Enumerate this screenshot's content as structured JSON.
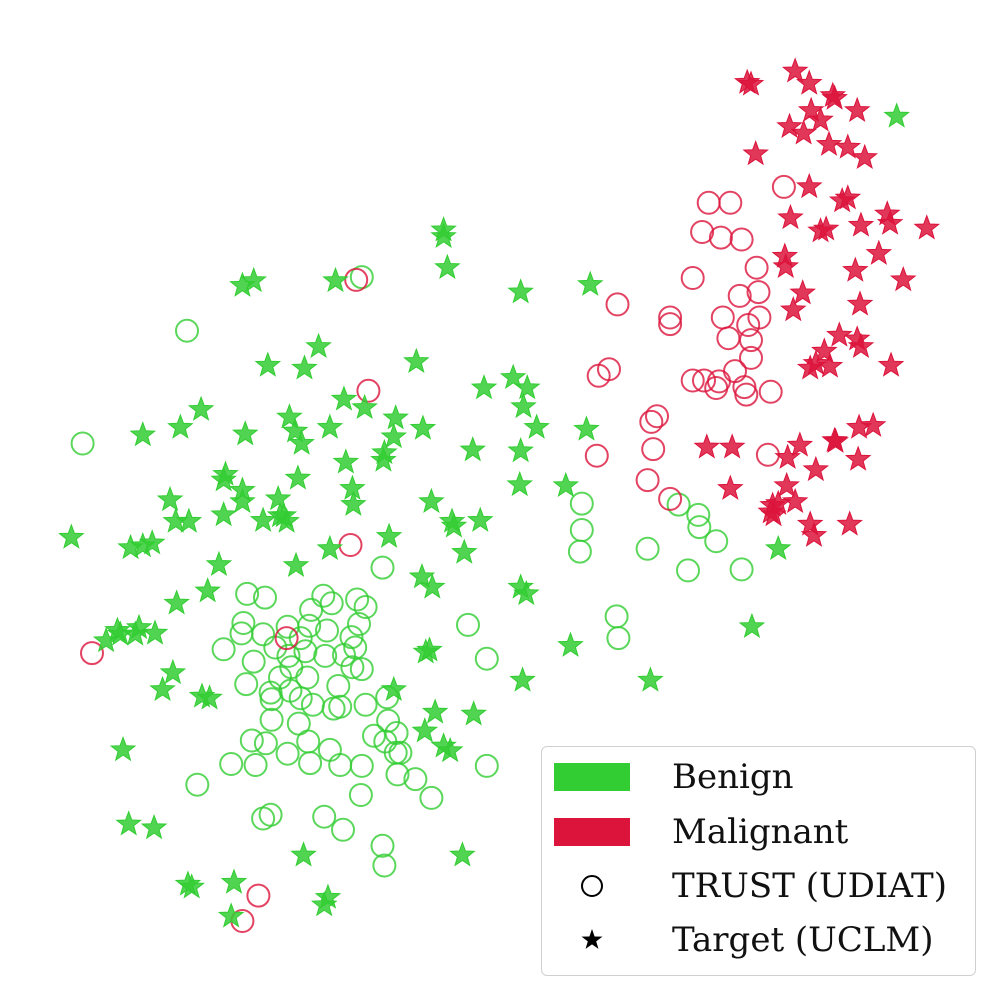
{
  "chart_data": {
    "type": "scatter",
    "title": "",
    "xlabel": "",
    "ylabel": "",
    "axes_visible": false,
    "grid": false,
    "xlim": [
      0,
      100
    ],
    "ylim": [
      0,
      100
    ],
    "legend_position": "bottom-right",
    "colors": {
      "benign": "#32cd32",
      "malignant": "#dc143c",
      "marker_key": "#000000"
    },
    "legend": [
      {
        "kind": "patch",
        "color_key": "benign",
        "label": "Benign"
      },
      {
        "kind": "patch",
        "color_key": "malignant",
        "label": "Malignant"
      },
      {
        "kind": "marker",
        "marker": "circle-open",
        "label": "TRUST (UDIAT)"
      },
      {
        "kind": "marker",
        "marker": "star",
        "label": "Target (UCLM)"
      }
    ],
    "series": [
      {
        "name": "Benign",
        "group": "TRUST (UDIAT)",
        "class": "benign",
        "marker": "circle-open",
        "points": [
          [
            35.3,
            73.5
          ],
          [
            16.7,
            67.8
          ],
          [
            5.6,
            55.8
          ],
          [
            37.5,
            42.6
          ],
          [
            58.7,
            49.4
          ],
          [
            58.7,
            46.6
          ],
          [
            58.5,
            44.3
          ],
          [
            65.7,
            44.6
          ],
          [
            69.0,
            49.3
          ],
          [
            71.1,
            48.2
          ],
          [
            71.2,
            46.9
          ],
          [
            73.0,
            45.4
          ],
          [
            70.0,
            42.3
          ],
          [
            75.7,
            42.4
          ],
          [
            62.4,
            37.4
          ],
          [
            62.6,
            35.1
          ],
          [
            46.6,
            36.5
          ],
          [
            48.6,
            32.9
          ],
          [
            48.6,
            21.5
          ],
          [
            39.1,
            20.6
          ],
          [
            41.0,
            20.1
          ],
          [
            42.7,
            18.1
          ],
          [
            37.5,
            13.0
          ],
          [
            37.7,
            10.9
          ],
          [
            17.8,
            19.5
          ],
          [
            24.8,
            15.9
          ],
          [
            25.6,
            16.3
          ],
          [
            31.3,
            16.1
          ],
          [
            33.3,
            14.7
          ],
          [
            39.4,
            22.9
          ],
          [
            35.2,
            18.4
          ],
          [
            35.3,
            21.5
          ],
          [
            29.8,
            21.8
          ],
          [
            27.4,
            22.8
          ],
          [
            25.1,
            23.9
          ],
          [
            23.6,
            24.2
          ],
          [
            21.4,
            21.7
          ],
          [
            24.0,
            21.6
          ],
          [
            25.7,
            26.4
          ],
          [
            25.7,
            28.6
          ],
          [
            23.0,
            30.2
          ],
          [
            20.6,
            33.9
          ],
          [
            22.7,
            36.7
          ],
          [
            25.0,
            39.4
          ],
          [
            23.1,
            39.8
          ],
          [
            24.8,
            35.5
          ],
          [
            27.4,
            36.3
          ],
          [
            26.1,
            34.1
          ],
          [
            23.8,
            32.6
          ],
          [
            22.5,
            35.6
          ],
          [
            27.5,
            33.2
          ],
          [
            29.3,
            33.7
          ],
          [
            29.7,
            36.4
          ],
          [
            31.6,
            35.9
          ],
          [
            31.2,
            39.6
          ],
          [
            29.9,
            38.1
          ],
          [
            28.8,
            35.1
          ],
          [
            27.8,
            32.0
          ],
          [
            26.6,
            30.9
          ],
          [
            25.6,
            29.3
          ],
          [
            27.7,
            29.5
          ],
          [
            29.5,
            30.9
          ],
          [
            31.4,
            33.2
          ],
          [
            33.4,
            33.3
          ],
          [
            34.2,
            35.2
          ],
          [
            35.0,
            36.6
          ],
          [
            35.7,
            38.4
          ],
          [
            34.8,
            39.2
          ],
          [
            32.1,
            38.8
          ],
          [
            34.3,
            32.0
          ],
          [
            34.6,
            34.1
          ],
          [
            35.3,
            31.8
          ],
          [
            32.8,
            30.0
          ],
          [
            30.1,
            28.0
          ],
          [
            28.8,
            28.7
          ],
          [
            28.6,
            26.0
          ],
          [
            32.3,
            27.6
          ],
          [
            35.7,
            28.0
          ],
          [
            33.0,
            27.8
          ],
          [
            29.6,
            24.1
          ],
          [
            31.9,
            23.2
          ],
          [
            33.0,
            21.6
          ],
          [
            36.6,
            24.7
          ],
          [
            38.1,
            26.3
          ],
          [
            38.0,
            28.8
          ],
          [
            39.0,
            25.0
          ],
          [
            37.8,
            24.1
          ],
          [
            38.9,
            22.9
          ]
        ]
      },
      {
        "name": "Malignant",
        "group": "TRUST (UDIAT)",
        "class": "malignant",
        "marker": "circle-open",
        "points": [
          [
            34.7,
            73.2
          ],
          [
            36.0,
            61.4
          ],
          [
            34.1,
            45.0
          ],
          [
            27.3,
            35.1
          ],
          [
            6.6,
            33.5
          ],
          [
            24.3,
            7.7
          ],
          [
            22.6,
            5.0
          ],
          [
            62.5,
            70.6
          ],
          [
            60.5,
            63.0
          ],
          [
            61.6,
            63.7
          ],
          [
            60.3,
            54.5
          ],
          [
            65.7,
            51.9
          ],
          [
            68.1,
            49.9
          ],
          [
            66.3,
            55.2
          ],
          [
            66.1,
            58.1
          ],
          [
            66.7,
            58.7
          ],
          [
            68.1,
            69.2
          ],
          [
            68.1,
            68.5
          ],
          [
            70.5,
            73.4
          ],
          [
            71.5,
            78.3
          ],
          [
            72.2,
            81.4
          ],
          [
            74.5,
            81.4
          ],
          [
            73.5,
            77.7
          ],
          [
            75.7,
            77.5
          ],
          [
            77.3,
            74.5
          ],
          [
            77.5,
            71.9
          ],
          [
            75.5,
            71.5
          ],
          [
            73.7,
            69.2
          ],
          [
            74.3,
            67.0
          ],
          [
            76.4,
            68.4
          ],
          [
            77.6,
            69.2
          ],
          [
            76.7,
            66.8
          ],
          [
            76.7,
            64.9
          ],
          [
            75.0,
            63.5
          ],
          [
            73.3,
            62.4
          ],
          [
            71.7,
            62.5
          ],
          [
            70.5,
            62.5
          ],
          [
            73.0,
            61.7
          ],
          [
            76.2,
            61.0
          ],
          [
            78.8,
            61.3
          ],
          [
            76.0,
            61.8
          ],
          [
            80.2,
            83.1
          ],
          [
            78.5,
            54.6
          ]
        ]
      },
      {
        "name": "Benign",
        "group": "Target (UCLM)",
        "class": "benign",
        "marker": "star",
        "points": [
          [
            44.0,
            78.5
          ],
          [
            44.0,
            77.8
          ],
          [
            44.4,
            74.5
          ],
          [
            22.6,
            72.6
          ],
          [
            23.8,
            73.1
          ],
          [
            32.5,
            73.1
          ],
          [
            52.2,
            71.9
          ],
          [
            59.6,
            72.7
          ],
          [
            92.2,
            90.6
          ],
          [
            41.1,
            64.5
          ],
          [
            30.7,
            66.1
          ],
          [
            29.2,
            63.8
          ],
          [
            25.3,
            64.1
          ],
          [
            18.2,
            59.4
          ],
          [
            16.0,
            57.5
          ],
          [
            12.0,
            56.7
          ],
          [
            22.9,
            56.8
          ],
          [
            27.6,
            58.6
          ],
          [
            28.2,
            57.1
          ],
          [
            33.4,
            60.5
          ],
          [
            35.6,
            59.6
          ],
          [
            38.9,
            58.5
          ],
          [
            31.9,
            57.5
          ],
          [
            28.9,
            55.8
          ],
          [
            33.6,
            53.8
          ],
          [
            37.7,
            54.8
          ],
          [
            48.3,
            61.7
          ],
          [
            51.4,
            62.8
          ],
          [
            52.9,
            61.7
          ],
          [
            52.5,
            59.7
          ],
          [
            53.9,
            57.5
          ],
          [
            52.2,
            55.0
          ],
          [
            47.1,
            55.1
          ],
          [
            59.2,
            57.3
          ],
          [
            41.8,
            57.4
          ],
          [
            38.7,
            56.5
          ],
          [
            37.6,
            54.0
          ],
          [
            34.3,
            51.0
          ],
          [
            34.4,
            49.3
          ],
          [
            28.5,
            52.1
          ],
          [
            26.4,
            49.9
          ],
          [
            26.6,
            48.1
          ],
          [
            22.6,
            50.8
          ],
          [
            20.6,
            51.9
          ],
          [
            20.8,
            52.5
          ],
          [
            22.6,
            49.6
          ],
          [
            20.6,
            48.2
          ],
          [
            24.8,
            47.6
          ],
          [
            27.0,
            48.1
          ],
          [
            27.3,
            47.5
          ],
          [
            14.9,
            49.8
          ],
          [
            15.5,
            47.5
          ],
          [
            16.9,
            47.5
          ],
          [
            13.0,
            45.2
          ],
          [
            12.0,
            44.9
          ],
          [
            10.7,
            44.7
          ],
          [
            4.4,
            45.8
          ],
          [
            20.1,
            42.9
          ],
          [
            18.9,
            40.1
          ],
          [
            15.6,
            38.8
          ],
          [
            28.3,
            42.8
          ],
          [
            31.9,
            44.6
          ],
          [
            38.2,
            45.9
          ],
          [
            42.7,
            49.6
          ],
          [
            44.9,
            47.5
          ],
          [
            45.1,
            47.0
          ],
          [
            47.9,
            47.6
          ],
          [
            46.2,
            44.2
          ],
          [
            52.1,
            51.4
          ],
          [
            57.0,
            51.3
          ],
          [
            41.7,
            41.6
          ],
          [
            42.8,
            40.5
          ],
          [
            52.2,
            40.5
          ],
          [
            52.8,
            39.8
          ],
          [
            11.6,
            36.2
          ],
          [
            11.2,
            35.5
          ],
          [
            9.6,
            35.5
          ],
          [
            8.1,
            34.8
          ],
          [
            13.3,
            35.6
          ],
          [
            9.3,
            35.9
          ],
          [
            15.2,
            31.4
          ],
          [
            14.1,
            29.6
          ],
          [
            18.3,
            28.9
          ],
          [
            19.1,
            28.7
          ],
          [
            38.7,
            29.6
          ],
          [
            42.1,
            33.6
          ],
          [
            42.5,
            33.8
          ],
          [
            52.4,
            30.6
          ],
          [
            57.5,
            34.3
          ],
          [
            66.0,
            30.6
          ],
          [
            76.8,
            36.3
          ],
          [
            79.6,
            44.6
          ],
          [
            43.1,
            27.2
          ],
          [
            42.0,
            25.2
          ],
          [
            44.0,
            23.6
          ],
          [
            44.7,
            23.1
          ],
          [
            47.2,
            27.0
          ],
          [
            9.9,
            23.2
          ],
          [
            10.5,
            15.3
          ],
          [
            13.2,
            14.9
          ],
          [
            29.1,
            12.0
          ],
          [
            21.7,
            9.1
          ],
          [
            16.8,
            8.9
          ],
          [
            17.2,
            8.6
          ],
          [
            21.4,
            5.5
          ],
          [
            31.7,
            7.5
          ],
          [
            31.3,
            6.7
          ],
          [
            46.0,
            12.0
          ],
          [
            57.2,
            10.0
          ],
          [
            57.8,
            9.3
          ]
        ]
      },
      {
        "name": "Malignant",
        "group": "Target (UCLM)",
        "class": "malignant",
        "marker": "star",
        "points": [
          [
            76.3,
            94.2
          ],
          [
            76.7,
            94.0
          ],
          [
            81.4,
            95.4
          ],
          [
            82.9,
            94.1
          ],
          [
            85.4,
            92.8
          ],
          [
            85.6,
            92.5
          ],
          [
            88.0,
            91.2
          ],
          [
            83.1,
            91.2
          ],
          [
            84.1,
            90.2
          ],
          [
            80.8,
            89.5
          ],
          [
            82.3,
            88.8
          ],
          [
            85.0,
            87.6
          ],
          [
            87.0,
            87.3
          ],
          [
            88.8,
            86.2
          ],
          [
            77.2,
            86.6
          ],
          [
            82.9,
            83.1
          ],
          [
            86.4,
            81.6
          ],
          [
            87.0,
            81.9
          ],
          [
            91.2,
            80.2
          ],
          [
            91.5,
            79.2
          ],
          [
            80.9,
            79.8
          ],
          [
            84.1,
            78.4
          ],
          [
            84.7,
            78.6
          ],
          [
            88.4,
            79.0
          ],
          [
            95.4,
            78.7
          ],
          [
            80.3,
            75.7
          ],
          [
            80.4,
            74.6
          ],
          [
            90.3,
            76.0
          ],
          [
            87.8,
            74.2
          ],
          [
            92.9,
            73.2
          ],
          [
            82.2,
            71.8
          ],
          [
            81.2,
            70.0
          ],
          [
            88.3,
            70.6
          ],
          [
            88.0,
            66.9
          ],
          [
            88.4,
            66.1
          ],
          [
            86.1,
            67.3
          ],
          [
            84.5,
            65.6
          ],
          [
            85.1,
            64.0
          ],
          [
            83.6,
            64.3
          ],
          [
            83.0,
            63.8
          ],
          [
            91.6,
            64.1
          ],
          [
            72.0,
            55.4
          ],
          [
            74.7,
            55.4
          ],
          [
            81.9,
            55.6
          ],
          [
            85.7,
            56.0
          ],
          [
            85.6,
            56.1
          ],
          [
            88.2,
            57.5
          ],
          [
            89.7,
            57.7
          ],
          [
            88.1,
            54.1
          ],
          [
            80.6,
            54.3
          ],
          [
            83.6,
            53.0
          ],
          [
            80.5,
            51.3
          ],
          [
            79.6,
            49.4
          ],
          [
            81.4,
            49.6
          ],
          [
            74.5,
            51.0
          ],
          [
            79.0,
            49.2
          ],
          [
            79.1,
            48.2
          ],
          [
            78.8,
            48.5
          ],
          [
            83.0,
            47.2
          ],
          [
            83.4,
            46.0
          ],
          [
            87.2,
            47.2
          ]
        ]
      }
    ]
  }
}
